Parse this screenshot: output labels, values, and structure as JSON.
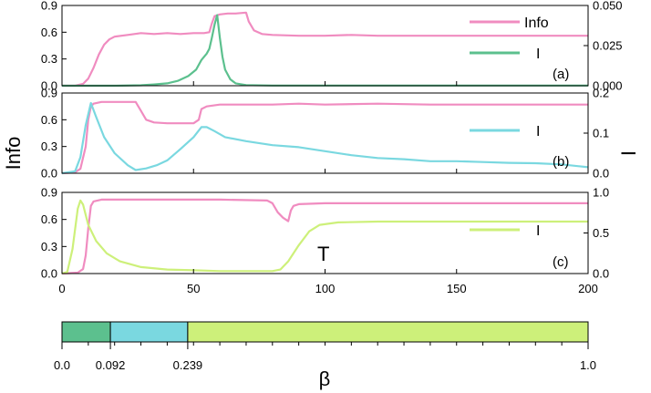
{
  "chart_data": [
    {
      "panel": "(a)",
      "type": "line",
      "xlim": [
        0,
        200
      ],
      "ylim_left": [
        0,
        0.9
      ],
      "ylim_right": [
        0,
        0.05
      ],
      "left_ticks": [
        "0.0",
        "0.3",
        "0.6",
        "0.9"
      ],
      "right_ticks": [
        "0.000",
        "0.025",
        "0.050"
      ],
      "legend_position": "top-right",
      "series": [
        {
          "name": "Info",
          "axis": "left",
          "color": "#f08cc0",
          "points": [
            [
              0,
              0
            ],
            [
              5,
              0
            ],
            [
              8,
              0.02
            ],
            [
              10,
              0.08
            ],
            [
              12,
              0.2
            ],
            [
              14,
              0.35
            ],
            [
              16,
              0.46
            ],
            [
              18,
              0.52
            ],
            [
              20,
              0.55
            ],
            [
              25,
              0.57
            ],
            [
              30,
              0.59
            ],
            [
              35,
              0.58
            ],
            [
              40,
              0.59
            ],
            [
              45,
              0.58
            ],
            [
              50,
              0.59
            ],
            [
              54,
              0.59
            ],
            [
              56,
              0.6
            ],
            [
              57,
              0.7
            ],
            [
              58,
              0.78
            ],
            [
              60,
              0.8
            ],
            [
              63,
              0.81
            ],
            [
              66,
              0.81
            ],
            [
              70,
              0.82
            ],
            [
              71,
              0.72
            ],
            [
              73,
              0.62
            ],
            [
              76,
              0.58
            ],
            [
              80,
              0.57
            ],
            [
              90,
              0.56
            ],
            [
              100,
              0.56
            ],
            [
              110,
              0.57
            ],
            [
              120,
              0.56
            ],
            [
              130,
              0.56
            ],
            [
              140,
              0.56
            ],
            [
              150,
              0.56
            ],
            [
              160,
              0.56
            ],
            [
              170,
              0.56
            ],
            [
              180,
              0.56
            ],
            [
              190,
              0.56
            ],
            [
              200,
              0.56
            ]
          ]
        },
        {
          "name": "I",
          "axis": "right",
          "color": "#5cc08e",
          "points": [
            [
              0,
              0
            ],
            [
              20,
              0
            ],
            [
              30,
              0.0003
            ],
            [
              35,
              0.0008
            ],
            [
              40,
              0.0015
            ],
            [
              44,
              0.003
            ],
            [
              48,
              0.006
            ],
            [
              51,
              0.01
            ],
            [
              53,
              0.016
            ],
            [
              55,
              0.02
            ],
            [
              56,
              0.023
            ],
            [
              57,
              0.03
            ],
            [
              58,
              0.038
            ],
            [
              59,
              0.044
            ],
            [
              60,
              0.03
            ],
            [
              61,
              0.018
            ],
            [
              62,
              0.01
            ],
            [
              64,
              0.004
            ],
            [
              66,
              0.0015
            ],
            [
              70,
              0.0004
            ],
            [
              80,
              0.0001
            ],
            [
              200,
              0.0001
            ]
          ]
        }
      ]
    },
    {
      "panel": "(b)",
      "type": "line",
      "xlim": [
        0,
        200
      ],
      "ylim_left": [
        0,
        0.9
      ],
      "ylim_right": [
        0,
        0.2
      ],
      "left_ticks": [
        "0.0",
        "0.3",
        "0.6",
        "0.9"
      ],
      "right_ticks": [
        "0.0",
        "0.1",
        "0.2"
      ],
      "legend_position": "top-right",
      "series": [
        {
          "name": "Info",
          "axis": "left",
          "color": "#f08cc0",
          "points": [
            [
              0,
              0
            ],
            [
              5,
              0.01
            ],
            [
              7,
              0.05
            ],
            [
              9,
              0.3
            ],
            [
              10,
              0.6
            ],
            [
              11,
              0.75
            ],
            [
              12,
              0.78
            ],
            [
              15,
              0.8
            ],
            [
              20,
              0.8
            ],
            [
              25,
              0.8
            ],
            [
              28,
              0.8
            ],
            [
              30,
              0.7
            ],
            [
              32,
              0.6
            ],
            [
              35,
              0.57
            ],
            [
              40,
              0.56
            ],
            [
              45,
              0.56
            ],
            [
              50,
              0.56
            ],
            [
              52,
              0.6
            ],
            [
              53,
              0.72
            ],
            [
              55,
              0.75
            ],
            [
              60,
              0.77
            ],
            [
              70,
              0.77
            ],
            [
              80,
              0.77
            ],
            [
              90,
              0.78
            ],
            [
              100,
              0.77
            ],
            [
              120,
              0.78
            ],
            [
              140,
              0.77
            ],
            [
              160,
              0.77
            ],
            [
              180,
              0.77
            ],
            [
              200,
              0.77
            ]
          ]
        },
        {
          "name": "I",
          "axis": "right",
          "color": "#7ad8e0",
          "points": [
            [
              0,
              0
            ],
            [
              5,
              0.005
            ],
            [
              7,
              0.04
            ],
            [
              9,
              0.12
            ],
            [
              11,
              0.175
            ],
            [
              13,
              0.14
            ],
            [
              16,
              0.09
            ],
            [
              20,
              0.05
            ],
            [
              25,
              0.02
            ],
            [
              28,
              0.008
            ],
            [
              32,
              0.012
            ],
            [
              36,
              0.02
            ],
            [
              40,
              0.032
            ],
            [
              45,
              0.06
            ],
            [
              50,
              0.09
            ],
            [
              53,
              0.115
            ],
            [
              55,
              0.115
            ],
            [
              58,
              0.105
            ],
            [
              62,
              0.09
            ],
            [
              70,
              0.08
            ],
            [
              80,
              0.07
            ],
            [
              90,
              0.065
            ],
            [
              100,
              0.055
            ],
            [
              110,
              0.045
            ],
            [
              120,
              0.038
            ],
            [
              130,
              0.035
            ],
            [
              140,
              0.03
            ],
            [
              150,
              0.03
            ],
            [
              160,
              0.028
            ],
            [
              170,
              0.026
            ],
            [
              180,
              0.025
            ],
            [
              190,
              0.022
            ],
            [
              200,
              0.015
            ]
          ]
        }
      ]
    },
    {
      "panel": "(c)",
      "type": "line",
      "xlim": [
        0,
        200
      ],
      "ylim_left": [
        0,
        0.9
      ],
      "ylim_right": [
        0,
        1.0
      ],
      "left_ticks": [
        "0.0",
        "0.3",
        "0.6",
        "0.9"
      ],
      "right_ticks": [
        "0.0",
        "0.5",
        "1.0"
      ],
      "legend_position": "top-right",
      "annotation": "T",
      "series": [
        {
          "name": "Info",
          "axis": "left",
          "color": "#f08cc0",
          "points": [
            [
              0,
              0
            ],
            [
              6,
              0.01
            ],
            [
              8,
              0.05
            ],
            [
              9,
              0.2
            ],
            [
              10,
              0.5
            ],
            [
              11,
              0.75
            ],
            [
              12,
              0.8
            ],
            [
              15,
              0.82
            ],
            [
              20,
              0.82
            ],
            [
              40,
              0.82
            ],
            [
              60,
              0.82
            ],
            [
              78,
              0.81
            ],
            [
              80,
              0.78
            ],
            [
              82,
              0.68
            ],
            [
              84,
              0.62
            ],
            [
              86,
              0.58
            ],
            [
              87,
              0.7
            ],
            [
              88,
              0.75
            ],
            [
              90,
              0.77
            ],
            [
              100,
              0.78
            ],
            [
              120,
              0.78
            ],
            [
              140,
              0.78
            ],
            [
              160,
              0.78
            ],
            [
              180,
              0.78
            ],
            [
              200,
              0.78
            ]
          ]
        },
        {
          "name": "I",
          "axis": "right",
          "color": "#cdf07a",
          "points": [
            [
              0,
              0
            ],
            [
              2,
              0.02
            ],
            [
              4,
              0.3
            ],
            [
              6,
              0.8
            ],
            [
              7,
              0.9
            ],
            [
              8,
              0.85
            ],
            [
              10,
              0.6
            ],
            [
              13,
              0.4
            ],
            [
              17,
              0.25
            ],
            [
              22,
              0.15
            ],
            [
              30,
              0.08
            ],
            [
              40,
              0.05
            ],
            [
              50,
              0.04
            ],
            [
              60,
              0.03
            ],
            [
              70,
              0.03
            ],
            [
              80,
              0.03
            ],
            [
              83,
              0.05
            ],
            [
              86,
              0.15
            ],
            [
              90,
              0.35
            ],
            [
              94,
              0.52
            ],
            [
              98,
              0.6
            ],
            [
              105,
              0.63
            ],
            [
              120,
              0.64
            ],
            [
              140,
              0.64
            ],
            [
              160,
              0.64
            ],
            [
              180,
              0.64
            ],
            [
              200,
              0.64
            ]
          ]
        }
      ]
    }
  ],
  "axes": {
    "x_ticks": [
      "0",
      "50",
      "100",
      "150",
      "200"
    ],
    "left_ylabel": "Info",
    "right_ylabel": "I"
  },
  "beta_bar": {
    "xlabel": "β",
    "segments": [
      {
        "from": 0.0,
        "to": 0.092,
        "color": "#5cc08e"
      },
      {
        "from": 0.092,
        "to": 0.239,
        "color": "#7ad8e0"
      },
      {
        "from": 0.239,
        "to": 1.0,
        "color": "#cdf07a"
      }
    ],
    "ticks": [
      {
        "value": 0.0,
        "label": "0.0"
      },
      {
        "value": 0.092,
        "label": "0.092"
      },
      {
        "value": 0.239,
        "label": "0.239"
      },
      {
        "value": 1.0,
        "label": "1.0"
      }
    ]
  }
}
